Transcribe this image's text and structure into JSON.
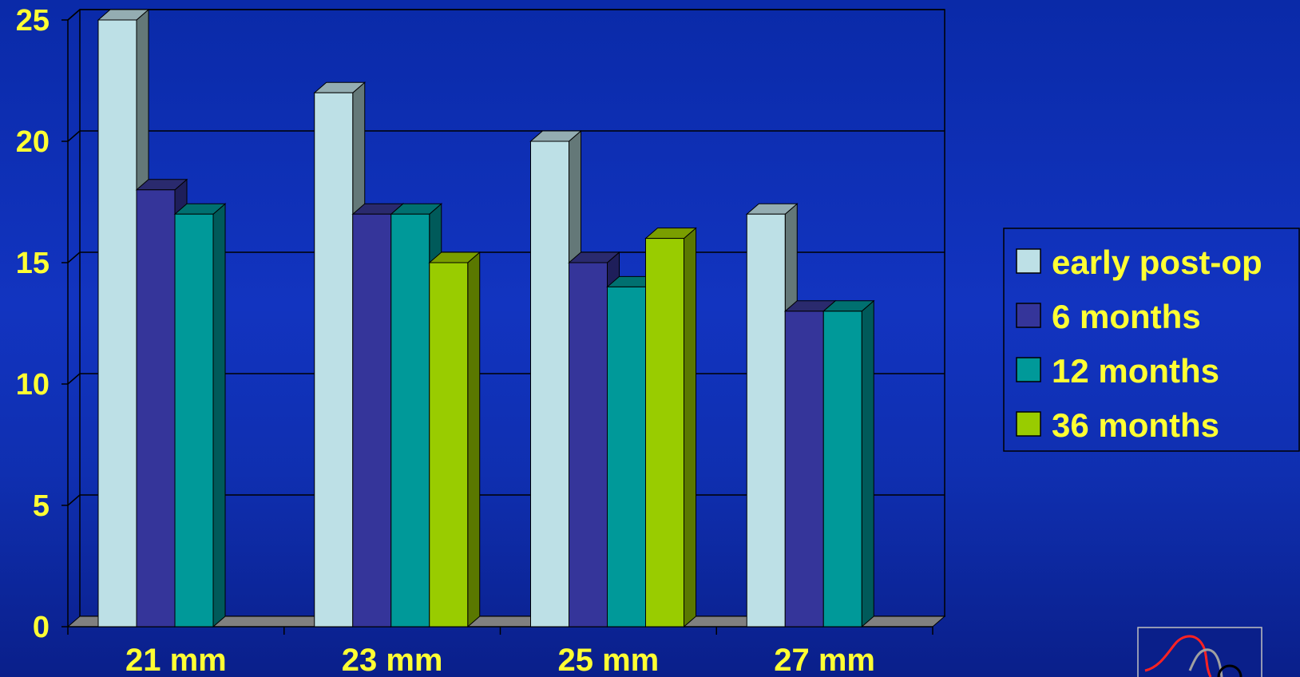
{
  "chart_data": {
    "type": "bar",
    "categories": [
      "21 mm",
      "23 mm",
      "25 mm",
      "27 mm"
    ],
    "series": [
      {
        "name": "early post-op",
        "values": [
          25,
          22,
          20,
          17
        ]
      },
      {
        "name": "6 months",
        "values": [
          18,
          17,
          15,
          13
        ]
      },
      {
        "name": "12 months",
        "values": [
          17,
          17,
          14,
          13
        ]
      },
      {
        "name": "36 months",
        "values": [
          null,
          15,
          16,
          null
        ]
      }
    ],
    "y_ticks": [
      "0",
      "5",
      "10",
      "15",
      "20",
      "25"
    ],
    "ylim": [
      0,
      25
    ],
    "grid": true,
    "legend_position": "right",
    "three_d": true,
    "colors": {
      "series": [
        "#bde0e6",
        "#35359a",
        "#009999",
        "#99cc00"
      ],
      "series_side": [
        "#647878",
        "#1e1e5a",
        "#005a5a",
        "#5a7800"
      ],
      "series_top": [
        "#94adb2",
        "#2a2a6e",
        "#007070",
        "#7a9e00"
      ],
      "text": "#ffff33",
      "grid": "#000000",
      "floor": "#808080"
    }
  },
  "logo": {
    "name": "heart-logo"
  }
}
